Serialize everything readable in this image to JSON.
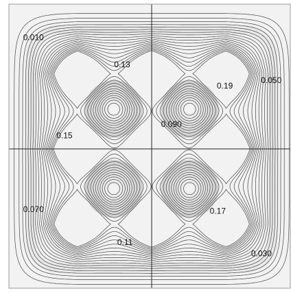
{
  "chart_data": {
    "type": "contour",
    "title": "",
    "xlabel": "",
    "ylabel": "",
    "xlim": [
      -1,
      1
    ],
    "ylim": [
      -1,
      1
    ],
    "grid": false,
    "legend": "none",
    "axes_cross_at_origin": true,
    "colors": {
      "contour_line": "#444444",
      "background_high": "#ffffff",
      "background_low": "#d0d0d0",
      "axis_line": "#222222",
      "frame": "#9a9a9a"
    },
    "contour_levels": [
      0.01,
      0.03,
      0.05,
      0.07,
      0.09,
      0.11,
      0.13,
      0.15,
      0.17,
      0.19
    ],
    "annotations": [
      {
        "text": "0.010",
        "x": -0.84,
        "y": 0.78
      },
      {
        "text": "0.13",
        "x": -0.21,
        "y": 0.59
      },
      {
        "text": "0.19",
        "x": 0.52,
        "y": 0.44
      },
      {
        "text": "0.050",
        "x": 0.85,
        "y": 0.48
      },
      {
        "text": "0.090",
        "x": 0.14,
        "y": 0.17
      },
      {
        "text": "0.15",
        "x": -0.62,
        "y": 0.09
      },
      {
        "text": "0.070",
        "x": -0.84,
        "y": -0.43
      },
      {
        "text": "0.17",
        "x": 0.47,
        "y": -0.44
      },
      {
        "text": "0.11",
        "x": -0.19,
        "y": -0.66
      },
      {
        "text": "0.030",
        "x": 0.78,
        "y": -0.74
      }
    ]
  }
}
